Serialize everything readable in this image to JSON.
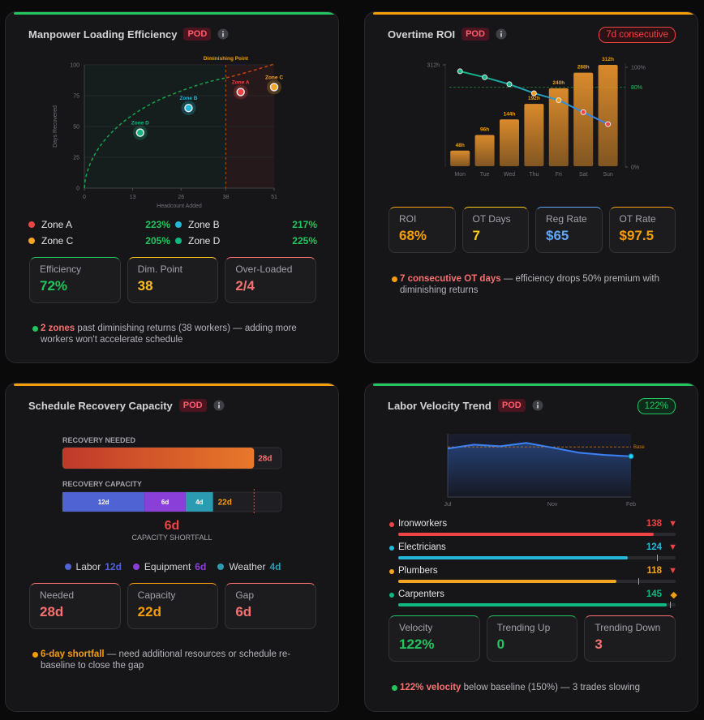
{
  "panels": [
    {
      "title": "Manpower Loading Efficiency",
      "badge": "POD",
      "accent": "#22c55e",
      "chart": {
        "type": "scatter",
        "x_label": "Headcount Added",
        "y_label": "Days Recovered",
        "xlim": [
          0,
          51
        ],
        "xticks": [
          0,
          13,
          26,
          38,
          51
        ],
        "ylim": [
          0,
          100
        ],
        "yticks": [
          0,
          25,
          50,
          75,
          100
        ],
        "annotation": {
          "text": "Diminishing Point",
          "x": 38
        },
        "series": [
          {
            "name": "Zone A",
            "color": "#ef4444",
            "x": [
              42
            ],
            "values": [
              78
            ],
            "legend_value": 223,
            "legend_label": "223%"
          },
          {
            "name": "Zone B",
            "color": "#22b8d6",
            "x": [
              28
            ],
            "values": [
              65
            ],
            "legend_value": 217,
            "legend_label": "217%"
          },
          {
            "name": "Zone C",
            "color": "#f5a524",
            "x": [
              51
            ],
            "values": [
              82
            ],
            "legend_value": 205,
            "legend_label": "205%"
          },
          {
            "name": "Zone D",
            "color": "#10b981",
            "x": [
              15
            ],
            "values": [
              45
            ],
            "legend_value": 225,
            "legend_label": "225%"
          }
        ]
      },
      "stats": [
        {
          "label": "Efficiency",
          "value": "72%",
          "color": "#22c55e"
        },
        {
          "label": "Dim. Point",
          "value": "38",
          "color": "#fbbf24"
        },
        {
          "label": "Over-Loaded",
          "value": "2/4",
          "color": "#f87171"
        }
      ],
      "note": {
        "highlight": "2 zones",
        "text": " past diminishing returns (38 workers) — adding more workers won't accelerate schedule",
        "dot": "#22c55e",
        "highlight_color": "#f87171"
      }
    },
    {
      "title": "Overtime ROI",
      "badge": "POD",
      "accent": "#f59e0b",
      "chip": {
        "text": "7d consecutive",
        "color": "#ef4444",
        "bg": "#2a1215"
      },
      "chart": {
        "type": "bar",
        "categories": [
          "Mon",
          "Tue",
          "Wed",
          "Thu",
          "Fri",
          "Sat",
          "Sun"
        ],
        "ylim": [
          0,
          312
        ],
        "yticks": [
          {
            "value": 312,
            "label": "312h"
          }
        ],
        "y2lim": [
          0,
          100
        ],
        "y2ticks": [
          {
            "value": 0,
            "label": "0%"
          },
          {
            "value": 100,
            "label": "100%"
          }
        ],
        "threshold": {
          "value": 80,
          "label": "80%",
          "color": "#22c55e"
        },
        "bars": {
          "values": [
            48,
            96,
            144,
            192,
            240,
            288,
            312
          ],
          "value_labels": [
            "48h",
            "96h",
            "144h",
            "192h",
            "240h",
            "288h",
            "312h"
          ],
          "color": "#d98a2b"
        },
        "line": {
          "axis": "y2",
          "values": [
            96,
            90,
            83,
            74,
            67,
            55,
            43
          ],
          "point_colors": [
            "#10b981",
            "#10b981",
            "#10b981",
            "#f59e0b",
            "#f59e0b",
            "#ef4444",
            "#ef4444"
          ]
        }
      },
      "stats": [
        {
          "label": "ROI",
          "value": "68%",
          "color": "#f59e0b"
        },
        {
          "label": "OT Days",
          "value": "7",
          "color": "#facc15"
        },
        {
          "label": "Reg Rate",
          "value": "$65",
          "color": "#60a5fa"
        },
        {
          "label": "OT Rate",
          "value": "$97.5",
          "color": "#f59e0b"
        }
      ],
      "note": {
        "highlight": "7 consecutive OT days",
        "text": " — efficiency drops 50% premium with diminishing returns",
        "dot": "#f59e0b",
        "highlight_color": "#f87171"
      }
    },
    {
      "title": "Schedule Recovery Capacity",
      "badge": "POD",
      "accent": "#f59e0b",
      "chart": {
        "type": "stacked_bar",
        "xlim": [
          0,
          32
        ],
        "needed": {
          "label": "RECOVERY NEEDED",
          "value": 28,
          "value_label": "28d"
        },
        "capacity": {
          "label": "RECOVERY CAPACITY",
          "total_label": "22d",
          "segments": [
            {
              "name": "Labor",
              "value": 12,
              "value_label": "12d",
              "color": "#4f63d2"
            },
            {
              "name": "Equipment",
              "value": 6,
              "value_label": "6d",
              "color": "#8b3fd9"
            },
            {
              "name": "Weather",
              "value": 4,
              "value_label": "4d",
              "color": "#2a9bb0"
            }
          ]
        },
        "shortfall": {
          "value_label": "6d",
          "label": "CAPACITY SHORTFALL"
        }
      },
      "stats": [
        {
          "label": "Needed",
          "value": "28d",
          "color": "#f87171"
        },
        {
          "label": "Capacity",
          "value": "22d",
          "color": "#f59e0b"
        },
        {
          "label": "Gap",
          "value": "6d",
          "color": "#f87171"
        }
      ],
      "note": {
        "highlight": "6-day shortfall",
        "text": " — need additional resources or schedule re-baseline to close the gap",
        "dot": "#f59e0b",
        "highlight_color": "#f59e0b"
      }
    },
    {
      "title": "Labor Velocity Trend",
      "badge": "POD",
      "accent": "#22c55e",
      "chip": {
        "text": "122%",
        "color": "#22c55e",
        "bg": "#0f2a1a"
      },
      "chart": {
        "type": "area",
        "categories": [
          "Jul",
          null,
          null,
          null,
          "Nov",
          null,
          null,
          "Feb"
        ],
        "values": [
          145,
          157,
          152,
          162,
          148,
          133,
          126,
          122
        ],
        "ylim": [
          0,
          170
        ],
        "color": "#3b82f6",
        "base": {
          "value": 150,
          "label": "Base",
          "color": "#d97706"
        }
      },
      "trades": {
        "xlim": [
          0,
          150
        ],
        "items": [
          {
            "name": "Ironworkers",
            "value": 138,
            "color": "#ef4444",
            "trend": "▼",
            "trend_color": "#ef4444",
            "target": null
          },
          {
            "name": "Electricians",
            "value": 124,
            "color": "#22b8d6",
            "trend": "▼",
            "trend_color": "#ef4444",
            "target": 140
          },
          {
            "name": "Plumbers",
            "value": 118,
            "color": "#f5a524",
            "trend": "▼",
            "trend_color": "#ef4444",
            "target": 130
          },
          {
            "name": "Carpenters",
            "value": 145,
            "color": "#10b981",
            "trend": "◆",
            "trend_color": "#f59e0b",
            "target": 147
          }
        ]
      },
      "stats": [
        {
          "label": "Velocity",
          "value": "122%",
          "color": "#22c55e"
        },
        {
          "label": "Trending Up",
          "value": "0",
          "color": "#22c55e"
        },
        {
          "label": "Trending Down",
          "value": "3",
          "color": "#f87171"
        }
      ],
      "note": {
        "highlight": "122% velocity",
        "text": " below baseline (150%) — 3 trades slowing",
        "dot": "#22c55e",
        "highlight_color": "#f87171"
      }
    }
  ]
}
